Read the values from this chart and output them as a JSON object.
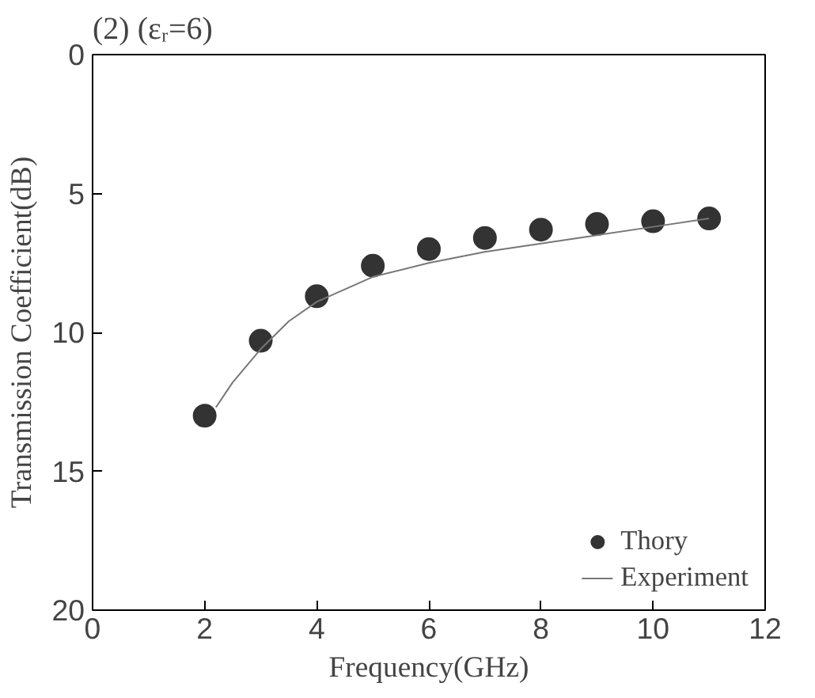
{
  "chart_data": {
    "type": "scatter",
    "title": "(2) (εᵣ=6)",
    "xlabel": "Frequency(GHz)",
    "ylabel": "Transmission Coefficient(dB)",
    "xlim": [
      0,
      12
    ],
    "xticks": [
      0,
      2,
      4,
      6,
      8,
      10,
      12
    ],
    "ylim": [
      20,
      0
    ],
    "yticks": [
      0,
      5,
      10,
      15,
      20
    ],
    "grid": false,
    "legend": "bottom right",
    "series": [
      {
        "name": "Thory",
        "marker": "circle",
        "color": "#333333",
        "x": [
          2,
          3,
          4,
          5,
          6,
          7,
          8,
          9,
          10,
          11
        ],
        "values": [
          13.0,
          10.3,
          8.7,
          7.6,
          7.0,
          6.6,
          6.3,
          6.1,
          6.0,
          5.9
        ]
      },
      {
        "name": "Experiment",
        "type": "line",
        "line_style": "solid",
        "color": "#777777",
        "x": [
          2.2,
          2.5,
          3,
          3.5,
          4,
          5,
          6,
          7,
          8,
          9,
          10,
          11
        ],
        "values": [
          12.7,
          11.8,
          10.6,
          9.6,
          8.9,
          8.0,
          7.5,
          7.1,
          6.8,
          6.5,
          6.2,
          5.9
        ]
      }
    ]
  }
}
